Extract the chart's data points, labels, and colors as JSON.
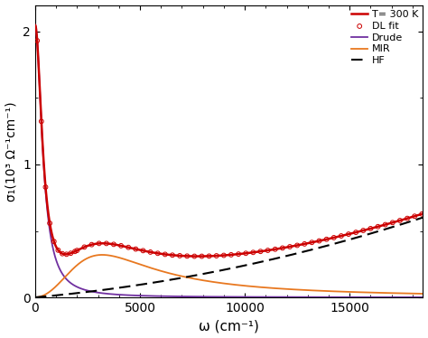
{
  "title": "",
  "xlabel": "ω (cm⁻¹)",
  "ylabel": "σ₁(10³ Ω⁻¹cm⁻¹)",
  "xlim": [
    0,
    18500
  ],
  "ylim": [
    0,
    2.2
  ],
  "xticks": [
    0,
    5000,
    10000,
    15000
  ],
  "yticks": [
    0,
    1,
    2
  ],
  "color_T300": "#cc0000",
  "color_DL": "#cc0000",
  "color_Drude": "#7030a0",
  "color_MIR": "#e87820",
  "color_HF": "#000000",
  "drude_sigma0": 2.05,
  "drude_gamma": 400,
  "mir_omega_0": 3200,
  "mir_gamma": 5500,
  "mir_peak": 0.32,
  "hf_A": 1.4e-05,
  "hf_B": 1e-09,
  "legend_labels": [
    "T= 300 K",
    "DL fit",
    "Drude",
    "MIR",
    "HF"
  ]
}
